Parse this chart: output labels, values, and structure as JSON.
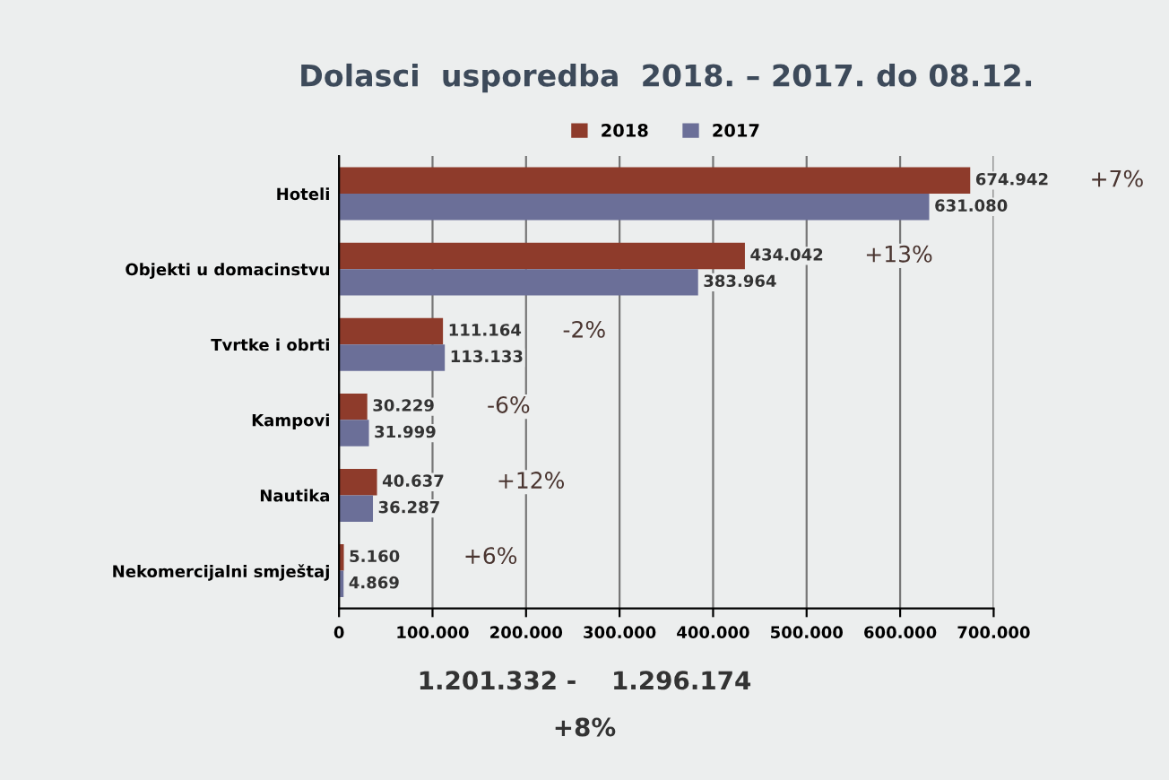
{
  "chart_data": {
    "type": "bar",
    "orientation": "horizontal",
    "title": "Dolasci  usporedba  2018. – 2017. do 08.12.",
    "categories": [
      "Hoteli",
      "Objekti u domacinstvu",
      "Tvrtke i obrti",
      "Kampovi",
      "Nautika",
      "Nekomercijalni smještaj"
    ],
    "series": [
      {
        "name": "2018",
        "color": "#8e3b2b",
        "values": [
          674942,
          434042,
          111164,
          30229,
          40637,
          5160
        ],
        "value_labels": [
          "674.942",
          "434.042",
          "111.164",
          "30.229",
          "40.637",
          "5.160"
        ]
      },
      {
        "name": "2017",
        "color": "#6b6f98",
        "values": [
          631080,
          383964,
          113133,
          31999,
          36287,
          4869
        ],
        "value_labels": [
          "631.080",
          "383.964",
          "113.133",
          "31.999",
          "36.287",
          "4.869"
        ]
      }
    ],
    "xlim": [
      0,
      700000
    ],
    "xticks": [
      0,
      {
        "value": 100000,
        "label": "100.000"
      },
      {
        "value": 200000,
        "label": "200.000"
      },
      {
        "value": 300000,
        "label": "300.000"
      },
      {
        "value": 400000,
        "label": "400.000"
      },
      {
        "value": 500000,
        "label": "500.000"
      },
      {
        "value": 600000,
        "label": "600.000"
      },
      {
        "value": 700000,
        "label": "700.000"
      }
    ],
    "grid": "x",
    "legend": "top",
    "annotations": [
      "+7%",
      "+13%",
      "-2%",
      "-6%",
      "+12%",
      "+6%",
      "1.201.332 -    1.296.174",
      "+8%"
    ]
  }
}
